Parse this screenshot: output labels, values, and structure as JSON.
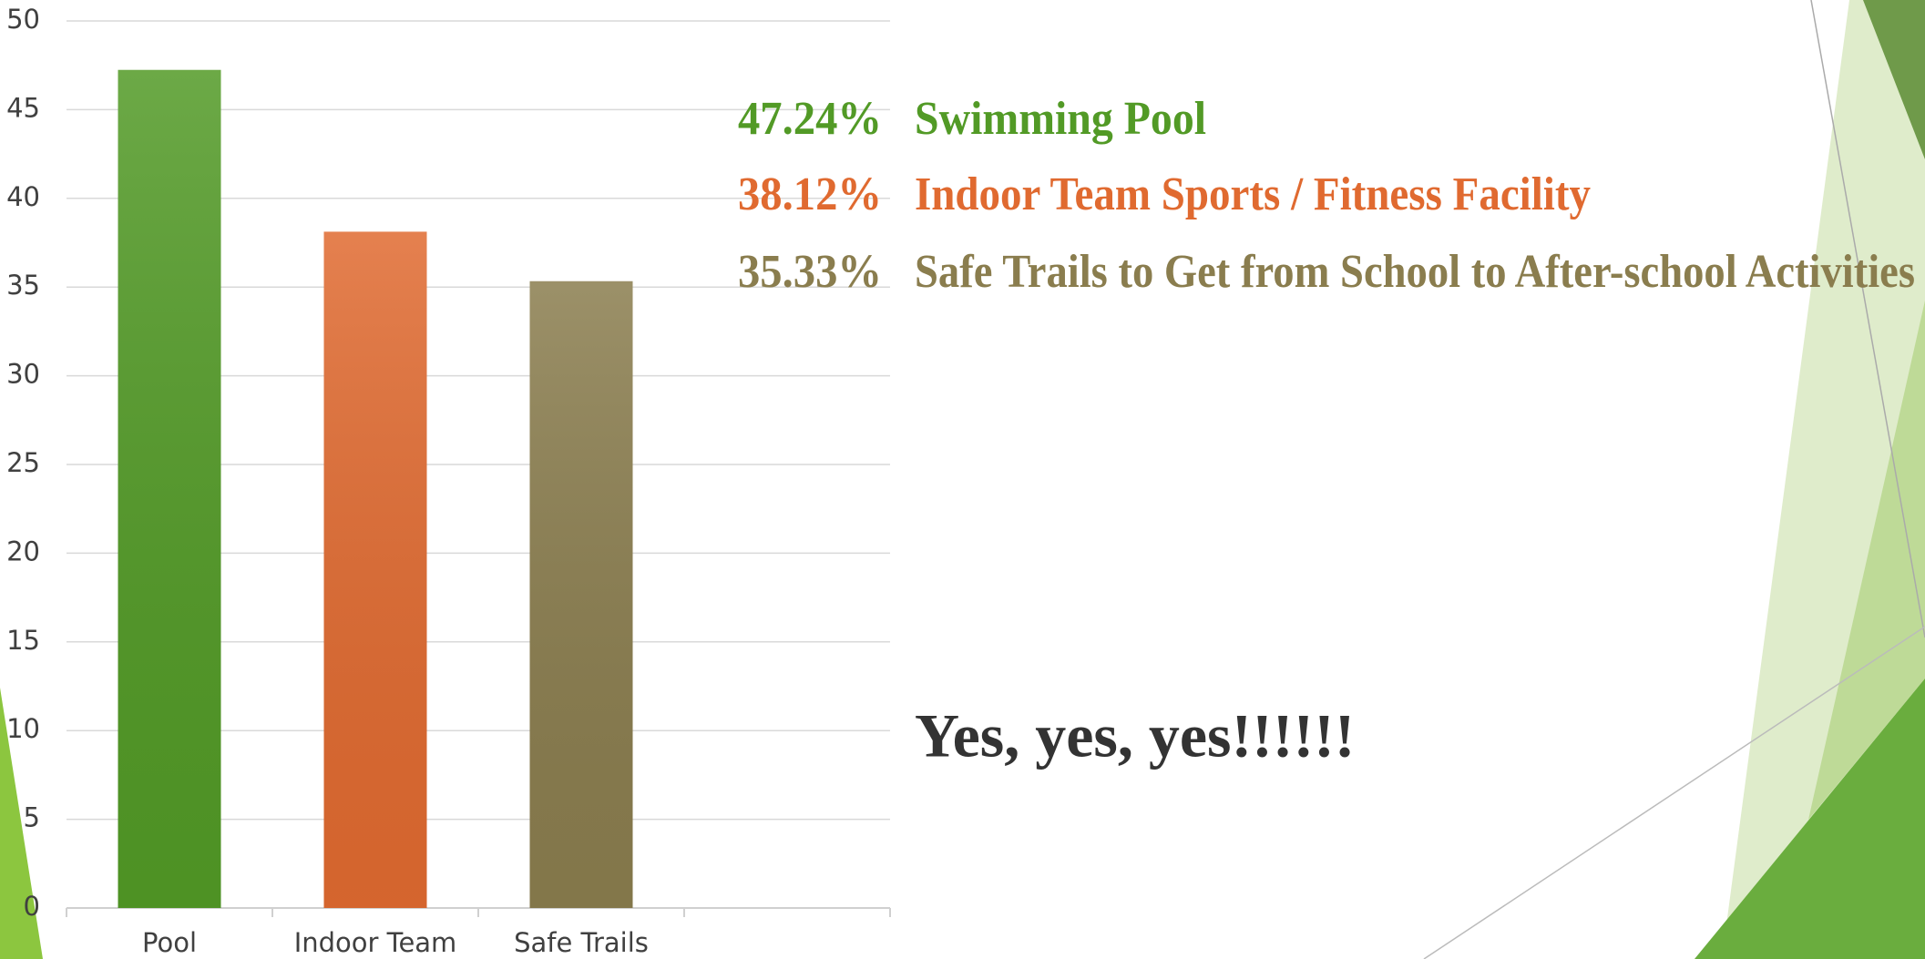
{
  "chart_data": {
    "type": "bar",
    "categories": [
      "Pool",
      "Indoor Team",
      "Safe Trails",
      null
    ],
    "values": [
      47.24,
      38.12,
      35.33,
      null
    ],
    "value_labels": [
      "47.24%",
      "38.12%",
      "35.33%",
      null
    ],
    "descriptions": [
      "Swimming Pool",
      "Indoor Team Sports / Fitness Facility",
      "Safe Trails to Get from School to After-school Activities",
      null
    ],
    "colors": [
      "#529a26",
      "#e06a30",
      "#8a7d4e",
      null
    ],
    "ylim": [
      0,
      50
    ],
    "yticks": [
      0,
      5,
      10,
      15,
      20,
      25,
      30,
      35,
      40,
      45,
      50
    ],
    "grid": true,
    "annotations": [
      "Yes, yes, yes!!!!!!"
    ]
  }
}
